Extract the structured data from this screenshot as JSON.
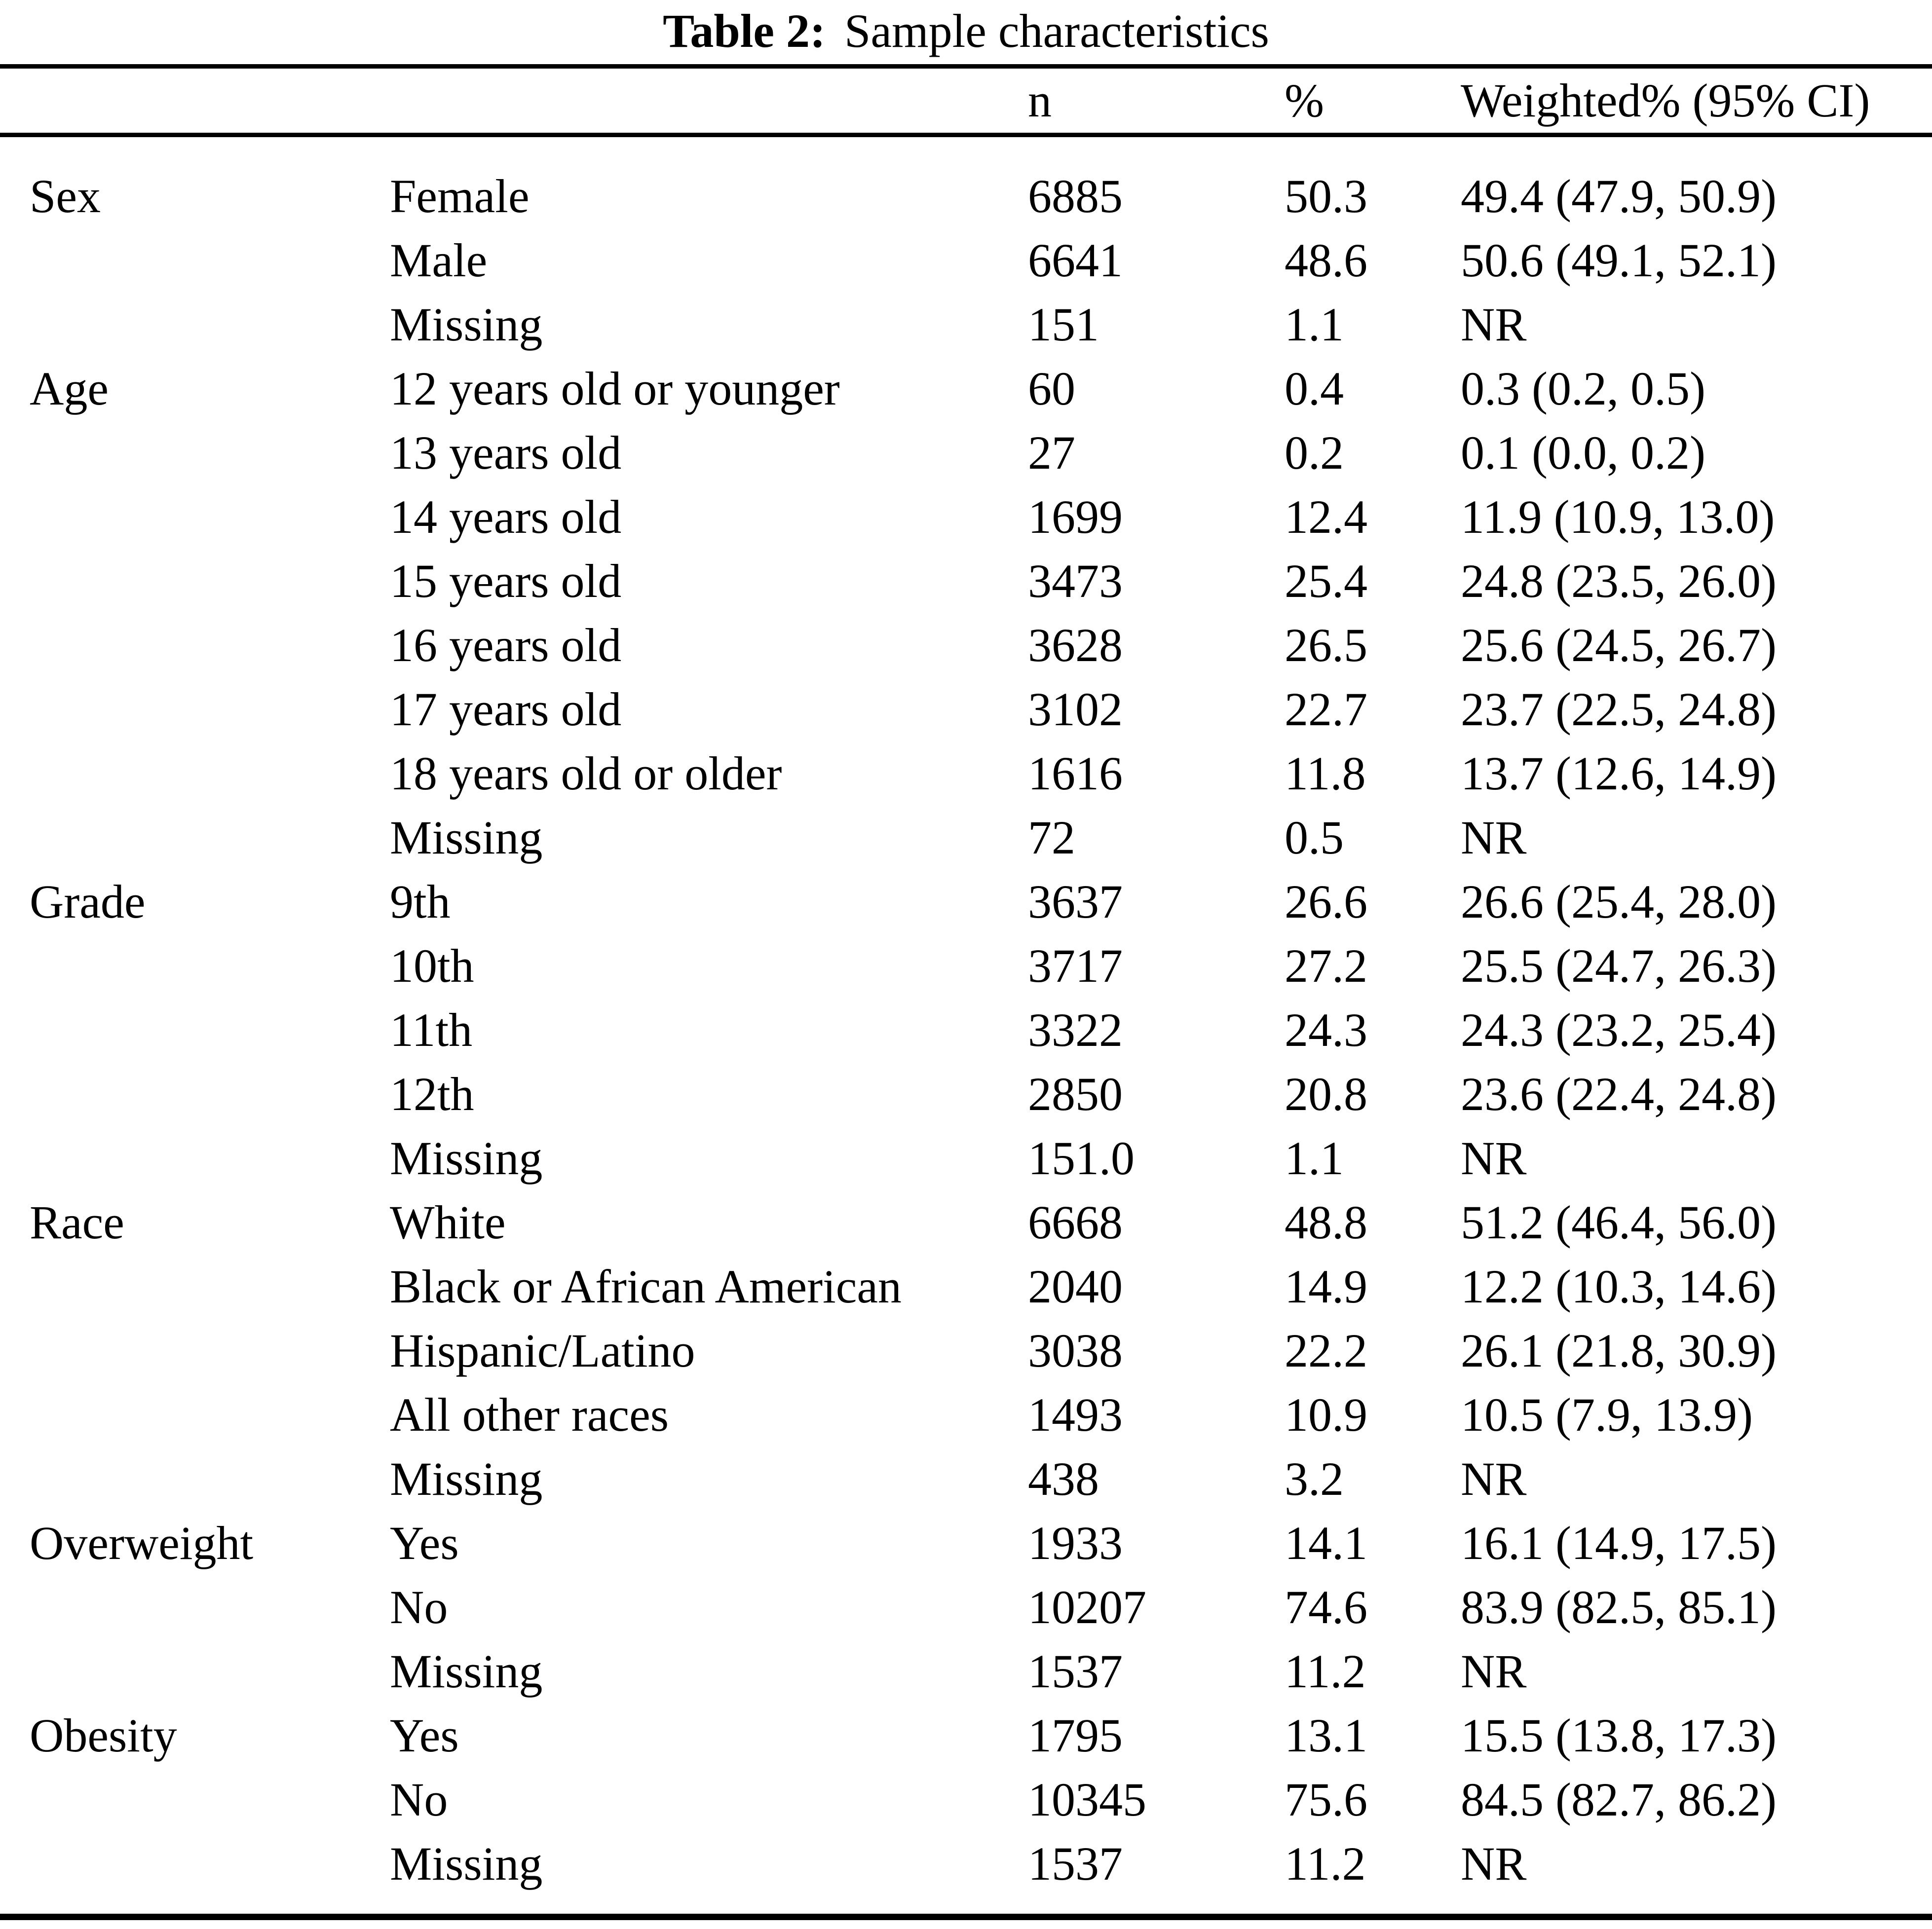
{
  "title": {
    "label": "Table 2:",
    "text": "Sample characteristics"
  },
  "table": {
    "columns": [
      "n",
      "%",
      "Weighted% (95% CI)"
    ],
    "groups": [
      {
        "category": "Sex",
        "rows": [
          {
            "label": "Female",
            "n": "6885",
            "pct": "50.3",
            "weighted": "49.4 (47.9, 50.9)"
          },
          {
            "label": "Male",
            "n": "6641",
            "pct": "48.6",
            "weighted": "50.6 (49.1, 52.1)"
          },
          {
            "label": "Missing",
            "n": "151",
            "pct": "1.1",
            "weighted": "NR"
          }
        ]
      },
      {
        "category": "Age",
        "rows": [
          {
            "label": "12 years old or younger",
            "n": "60",
            "pct": "0.4",
            "weighted": "0.3 (0.2, 0.5)"
          },
          {
            "label": "13 years old",
            "n": "27",
            "pct": "0.2",
            "weighted": "0.1 (0.0, 0.2)"
          },
          {
            "label": "14 years old",
            "n": "1699",
            "pct": "12.4",
            "weighted": "11.9 (10.9, 13.0)"
          },
          {
            "label": "15 years old",
            "n": "3473",
            "pct": "25.4",
            "weighted": "24.8 (23.5, 26.0)"
          },
          {
            "label": "16 years old",
            "n": "3628",
            "pct": "26.5",
            "weighted": "25.6 (24.5, 26.7)"
          },
          {
            "label": "17 years old",
            "n": "3102",
            "pct": "22.7",
            "weighted": "23.7 (22.5, 24.8)"
          },
          {
            "label": "18 years old or older",
            "n": "1616",
            "pct": "11.8",
            "weighted": "13.7 (12.6, 14.9)"
          },
          {
            "label": "Missing",
            "n": "72",
            "pct": "0.5",
            "weighted": "NR"
          }
        ]
      },
      {
        "category": "Grade",
        "rows": [
          {
            "label": "9th",
            "n": "3637",
            "pct": "26.6",
            "weighted": "26.6 (25.4, 28.0)"
          },
          {
            "label": "10th",
            "n": "3717",
            "pct": "27.2",
            "weighted": "25.5 (24.7, 26.3)"
          },
          {
            "label": "11th",
            "n": "3322",
            "pct": "24.3",
            "weighted": "24.3 (23.2, 25.4)"
          },
          {
            "label": "12th",
            "n": "2850",
            "pct": "20.8",
            "weighted": "23.6 (22.4, 24.8)"
          },
          {
            "label": "Missing",
            "n": "151.0",
            "pct": "1.1",
            "weighted": "NR"
          }
        ]
      },
      {
        "category": "Race",
        "rows": [
          {
            "label": "White",
            "n": "6668",
            "pct": "48.8",
            "weighted": "51.2 (46.4, 56.0)"
          },
          {
            "label": "Black or African American",
            "n": "2040",
            "pct": "14.9",
            "weighted": "12.2 (10.3, 14.6)"
          },
          {
            "label": "Hispanic/Latino",
            "n": "3038",
            "pct": "22.2",
            "weighted": "26.1 (21.8, 30.9)"
          },
          {
            "label": "All other races",
            "n": "1493",
            "pct": "10.9",
            "weighted": "10.5 (7.9, 13.9)"
          },
          {
            "label": "Missing",
            "n": "438",
            "pct": "3.2",
            "weighted": "NR"
          }
        ]
      },
      {
        "category": "Overweight",
        "rows": [
          {
            "label": "Yes",
            "n": "1933",
            "pct": "14.1",
            "weighted": "16.1 (14.9, 17.5)"
          },
          {
            "label": "No",
            "n": "10207",
            "pct": "74.6",
            "weighted": "83.9 (82.5, 85.1)"
          },
          {
            "label": "Missing",
            "n": "1537",
            "pct": "11.2",
            "weighted": "NR"
          }
        ]
      },
      {
        "category": "Obesity",
        "rows": [
          {
            "label": "Yes",
            "n": "1795",
            "pct": "13.1",
            "weighted": "15.5 (13.8, 17.3)"
          },
          {
            "label": "No",
            "n": "10345",
            "pct": "75.6",
            "weighted": "84.5 (82.7, 86.2)"
          },
          {
            "label": "Missing",
            "n": "1537",
            "pct": "11.2",
            "weighted": "NR"
          }
        ]
      }
    ]
  }
}
